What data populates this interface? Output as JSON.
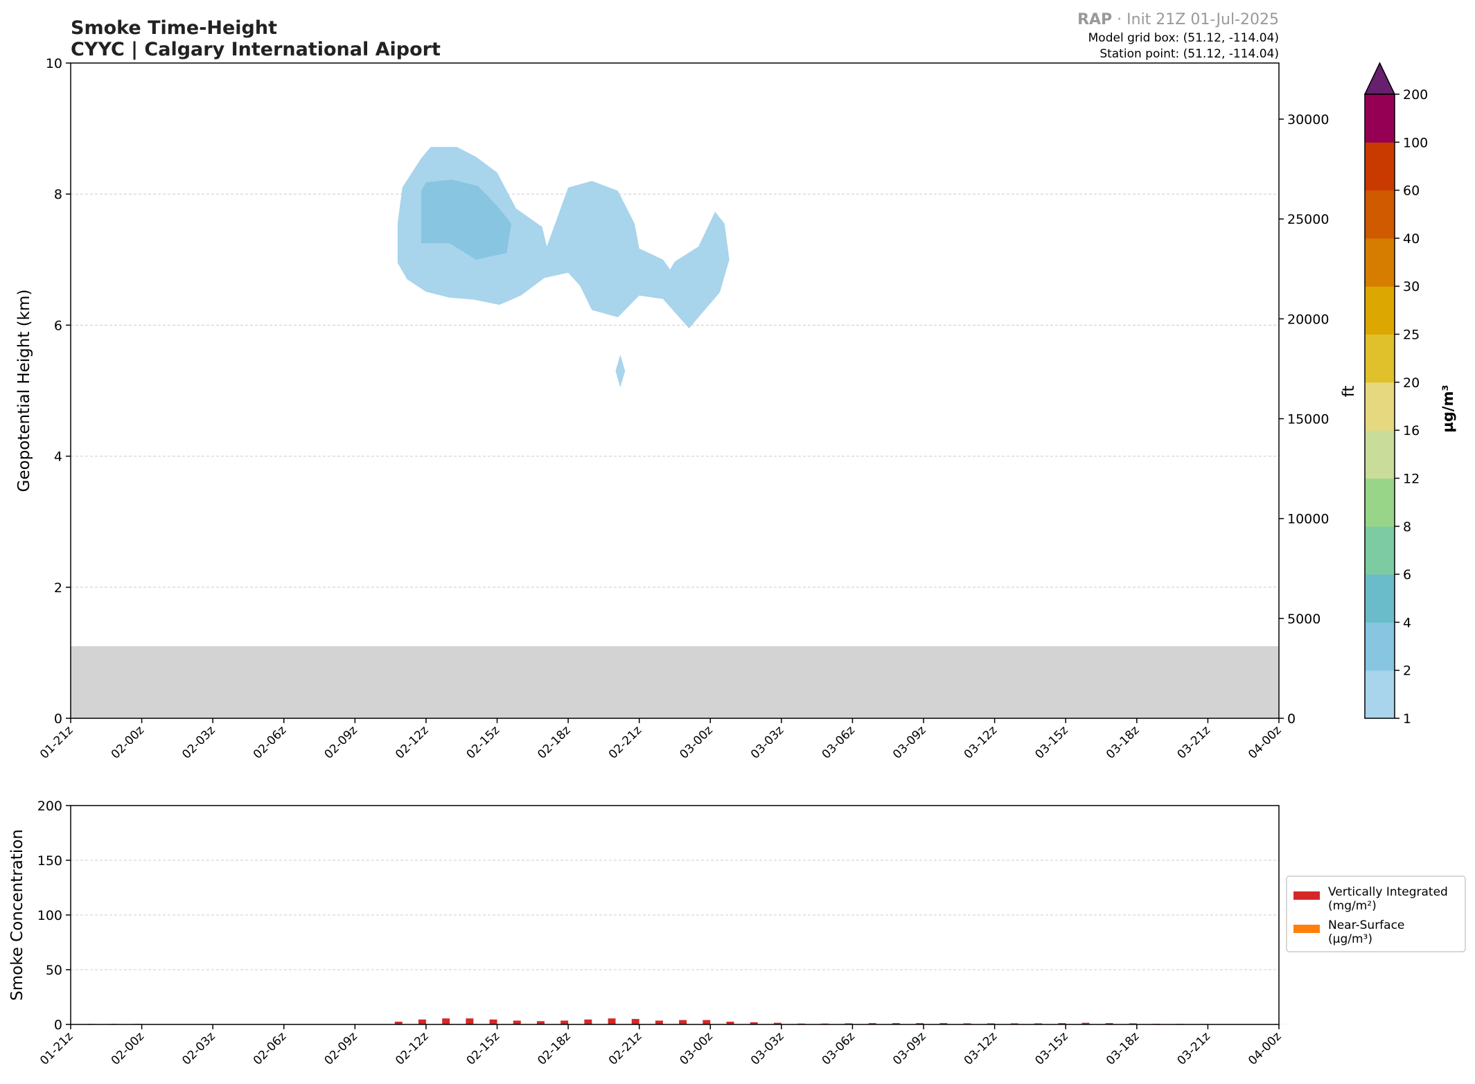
{
  "header": {
    "title_line1": "Smoke Time-Height",
    "title_line2": "CYYC | Calgary International Aiport",
    "model_name": "RAP",
    "init_text": " · Init 21Z 01-Jul-2025",
    "grid_box": "Model grid box: (51.12, -114.04)",
    "station_point": "Station point: (51.12, -114.04)"
  },
  "colors": {
    "axis": "#000000",
    "grid": "#cccccc",
    "terrain": "#d3d3d3",
    "integrated": "#d62728",
    "near_surface": "#ff7f0e",
    "title": "#222222",
    "model_muted": "#999999"
  },
  "chart_data": [
    {
      "type": "heatmap",
      "ylabel": "Geopotential Height (km)",
      "y2label": "ft",
      "ylim": [
        0,
        10
      ],
      "yticks": [
        0,
        2,
        4,
        6,
        8,
        10
      ],
      "y2ticks": [
        0,
        5000,
        10000,
        15000,
        20000,
        25000,
        30000
      ],
      "x_hours_range": [
        0,
        51
      ],
      "xticks": [
        "01-21z",
        "02-00z",
        "02-03z",
        "02-06z",
        "02-09z",
        "02-12z",
        "02-15z",
        "02-18z",
        "02-21z",
        "03-00z",
        "03-03z",
        "03-06z",
        "03-09z",
        "03-12z",
        "03-15z",
        "03-18z",
        "03-21z",
        "04-00z"
      ],
      "grid": true,
      "terrain_top_km": 1.1,
      "colorbar": {
        "label": "µg/m³",
        "levels": [
          1,
          2,
          4,
          6,
          8,
          12,
          16,
          20,
          25,
          30,
          40,
          60,
          100,
          200
        ],
        "colors": [
          "#a8d4ec",
          "#87c5e0",
          "#6bbcca",
          "#7ccba2",
          "#99d589",
          "#c9dc9a",
          "#e6d87e",
          "#e0c12c",
          "#dca700",
          "#d67d00",
          "#cf5a00",
          "#c93a00",
          "#960054"
        ],
        "extend_color": "#67206e"
      },
      "contours": [
        {
          "level": 1,
          "color": "#a8d4ec",
          "polygon": [
            [
              13.8,
              6.95
            ],
            [
              13.8,
              7.55
            ],
            [
              14.0,
              8.1
            ],
            [
              14.8,
              8.55
            ],
            [
              15.2,
              8.72
            ],
            [
              16.3,
              8.72
            ],
            [
              17.1,
              8.57
            ],
            [
              18.0,
              8.33
            ],
            [
              18.8,
              7.78
            ],
            [
              19.9,
              7.5
            ],
            [
              20.1,
              7.2
            ],
            [
              21.0,
              8.1
            ],
            [
              22.0,
              8.2
            ],
            [
              23.1,
              8.05
            ],
            [
              23.8,
              7.55
            ],
            [
              24.0,
              7.17
            ],
            [
              25.0,
              7.0
            ],
            [
              25.3,
              6.85
            ],
            [
              25.5,
              6.97
            ],
            [
              26.5,
              7.2
            ],
            [
              27.2,
              7.73
            ],
            [
              27.6,
              7.55
            ],
            [
              27.8,
              7.0
            ],
            [
              27.4,
              6.5
            ],
            [
              26.1,
              5.95
            ],
            [
              25.0,
              6.4
            ],
            [
              24.0,
              6.45
            ],
            [
              23.1,
              6.12
            ],
            [
              22.0,
              6.23
            ],
            [
              21.5,
              6.6
            ],
            [
              21.0,
              6.8
            ],
            [
              20.0,
              6.72
            ],
            [
              19.0,
              6.45
            ],
            [
              18.1,
              6.31
            ],
            [
              17.0,
              6.39
            ],
            [
              16.0,
              6.42
            ],
            [
              15.0,
              6.51
            ],
            [
              14.2,
              6.7
            ]
          ]
        },
        {
          "level": 2,
          "color": "#87c5e0",
          "polygon": [
            [
              14.8,
              7.25
            ],
            [
              14.8,
              8.05
            ],
            [
              15.0,
              8.18
            ],
            [
              16.1,
              8.22
            ],
            [
              17.2,
              8.12
            ],
            [
              18.0,
              7.82
            ],
            [
              18.6,
              7.55
            ],
            [
              18.4,
              7.1
            ],
            [
              17.1,
              7.0
            ],
            [
              16.0,
              7.25
            ]
          ]
        },
        {
          "level": 1,
          "color": "#a8d4ec",
          "polygon": [
            [
              23.0,
              5.3
            ],
            [
              23.2,
              5.55
            ],
            [
              23.4,
              5.3
            ],
            [
              23.2,
              5.05
            ]
          ]
        }
      ]
    },
    {
      "type": "bar",
      "ylabel": "Smoke Concentration",
      "ylim": [
        0,
        200
      ],
      "yticks": [
        0,
        50,
        100,
        150,
        200
      ],
      "x_hours_range": [
        0,
        51
      ],
      "xticks": [
        "01-21z",
        "02-00z",
        "02-03z",
        "02-06z",
        "02-09z",
        "02-12z",
        "02-15z",
        "02-18z",
        "02-21z",
        "03-00z",
        "03-03z",
        "03-06z",
        "03-09z",
        "03-12z",
        "03-15z",
        "03-18z",
        "03-21z",
        "04-00z"
      ],
      "grid": true,
      "legend_position": "right",
      "series": [
        {
          "name": "Vertically Integrated\n(mg/m²)",
          "color": "#d62728",
          "x": [
            1,
            2,
            3,
            4,
            5,
            6,
            7,
            8,
            9,
            10,
            11,
            12,
            13,
            14,
            15,
            16,
            17,
            18,
            19,
            20,
            21,
            22,
            23,
            24,
            25,
            26,
            27,
            28,
            29,
            30,
            31,
            32,
            33,
            34,
            35,
            36,
            37,
            38,
            39,
            40,
            41,
            42,
            43,
            44,
            45,
            46,
            47,
            48,
            49,
            50,
            51
          ],
          "values": [
            0.5,
            0.5,
            0.5,
            0.3,
            0.3,
            0.3,
            0.3,
            0.3,
            0.3,
            0.2,
            0.2,
            0.2,
            0.3,
            2.5,
            4.5,
            5.5,
            5.5,
            4.5,
            3.5,
            3.0,
            3.5,
            4.5,
            5.5,
            5.0,
            3.5,
            4.0,
            4.0,
            2.5,
            2.0,
            1.5,
            0.8,
            0.8,
            1.0,
            1.2,
            1.2,
            1.2,
            1.2,
            1.0,
            1.0,
            1.0,
            1.0,
            1.2,
            1.5,
            1.2,
            1.0,
            0.6,
            0.5,
            0.4,
            0.3,
            0.2,
            0.2
          ]
        },
        {
          "name": "Near-Surface\n(µg/m³)",
          "color": "#ff7f0e",
          "x": [
            1,
            2,
            3,
            4,
            5,
            6,
            7,
            8,
            9,
            10,
            11,
            12,
            13,
            14,
            15,
            16,
            17,
            18,
            19,
            20,
            21,
            22,
            23,
            24,
            25,
            26,
            27,
            28,
            29,
            30,
            31,
            32,
            33,
            34,
            35,
            36,
            37,
            38,
            39,
            40,
            41,
            42,
            43,
            44,
            45,
            46,
            47,
            48,
            49,
            50,
            51
          ],
          "values": [
            0.1,
            0.1,
            0.1,
            0.1,
            0.1,
            0.1,
            0.1,
            0.1,
            0.1,
            0.1,
            0.1,
            0.1,
            0.1,
            0.2,
            0.2,
            0.2,
            0.2,
            0.2,
            0.2,
            0.2,
            0.2,
            0.2,
            0.2,
            0.2,
            0.2,
            0.2,
            0.2,
            0.2,
            0.2,
            0.2,
            0.1,
            0.1,
            0.1,
            0.1,
            0.1,
            0.1,
            0.1,
            0.1,
            0.1,
            0.1,
            0.1,
            0.1,
            0.1,
            0.1,
            0.1,
            0.1,
            0.1,
            0.1,
            0.1,
            0.1,
            0.1
          ]
        }
      ]
    }
  ]
}
